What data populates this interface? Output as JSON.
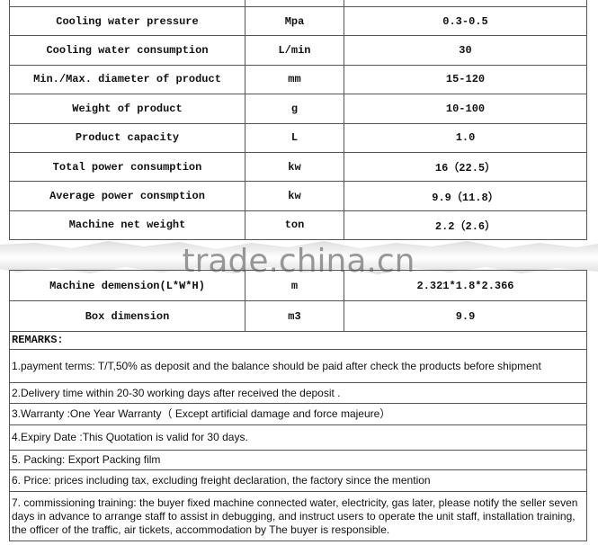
{
  "watermark": "trade.china.cn",
  "table": {
    "rows": [
      [
        "Cooling water pressure",
        "Mpa",
        "0.3-0.5"
      ],
      [
        "Cooling water consumption",
        "L/min",
        "30"
      ],
      [
        "Min./Max. diameter of product",
        "mm",
        "15-120"
      ],
      [
        "Weight of product",
        "g",
        "10-100"
      ],
      [
        "Product capacity",
        "L",
        "1.0"
      ],
      [
        "Total power consumption",
        "kw",
        "16（22.5）"
      ],
      [
        "Average power consmption",
        "kw",
        "9.9（11.8）"
      ],
      [
        "Machine net weight",
        "ton",
        "2.2（2.6）"
      ]
    ],
    "rows_after_break": [
      [
        "Machine demension(L*W*H)",
        "m",
        "2.321*1.8*2.366"
      ],
      [
        "Box dimension",
        "m3",
        "9.9"
      ]
    ]
  },
  "remarks": {
    "title": "REMARKS:",
    "items": [
      "1.payment terms: T/T,50% as deposit and the balance should be paid after check the products before shipment",
      "2.Delivery time within 20-30 working days after received the deposit .",
      "3.Warranty :One Year Warranty（ Except artificial damage and force majeure）",
      "4.Expiry Date :This Quotation is valid for 30 days.",
      "5. Packing: Export Packing film",
      "6. Price: prices including tax, excluding freight declaration, the factory since the mention",
      "7. commissioning training: the buyer fixed machine connected water, electricity, gas later, please notify the seller seven days in advance to arrange staff to assist in debugging, and instruct users to operate the unit staff, installation training, the officer of the traffic, air tickets, accommodation by The buyer is responsible."
    ]
  }
}
